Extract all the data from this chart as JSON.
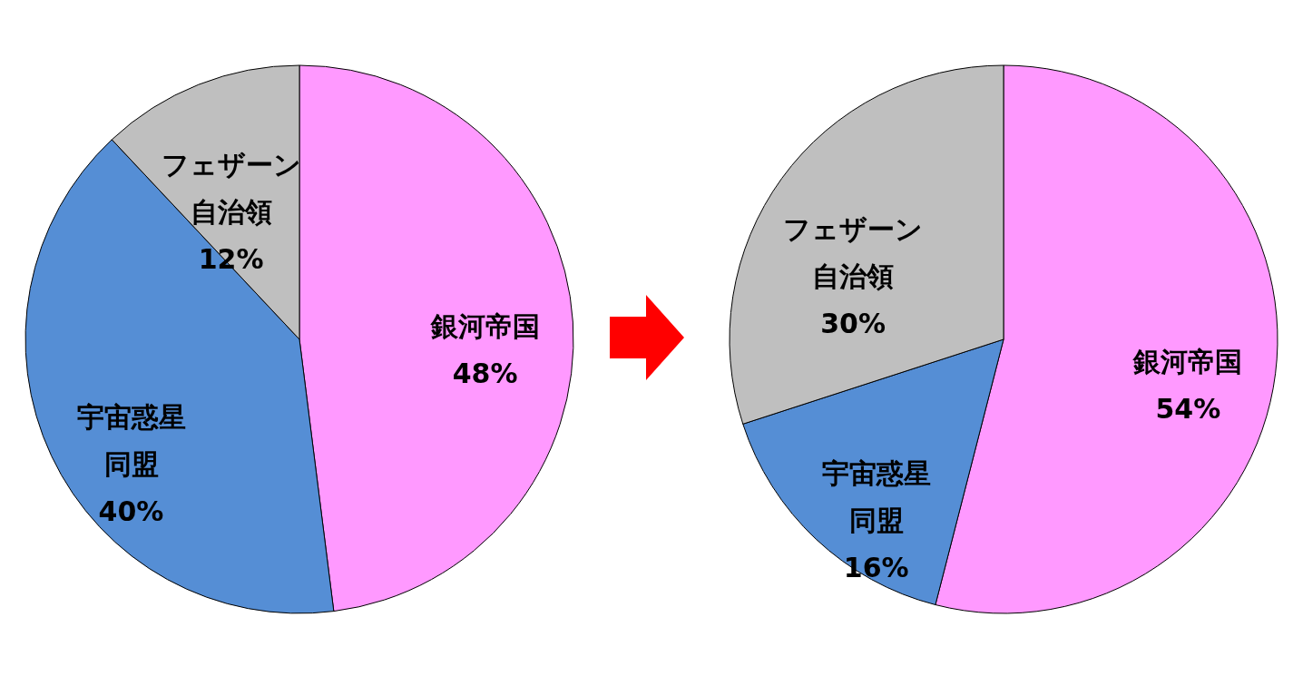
{
  "chart_data": [
    {
      "type": "pie",
      "categories": [
        "銀河帝国",
        "宇宙惑星同盟",
        "フェザーン自治領"
      ],
      "values": [
        48,
        40,
        12
      ],
      "value_labels": [
        "48%",
        "40%",
        "12%"
      ],
      "colors": [
        "#ff99ff",
        "#558ed5",
        "#bfbfbf"
      ]
    },
    {
      "type": "pie",
      "categories": [
        "銀河帝国",
        "宇宙惑星同盟",
        "フェザーン自治領"
      ],
      "values": [
        54,
        16,
        30
      ],
      "value_labels": [
        "54%",
        "16%",
        "30%"
      ],
      "colors": [
        "#ff99ff",
        "#558ed5",
        "#bfbfbf"
      ]
    }
  ]
}
